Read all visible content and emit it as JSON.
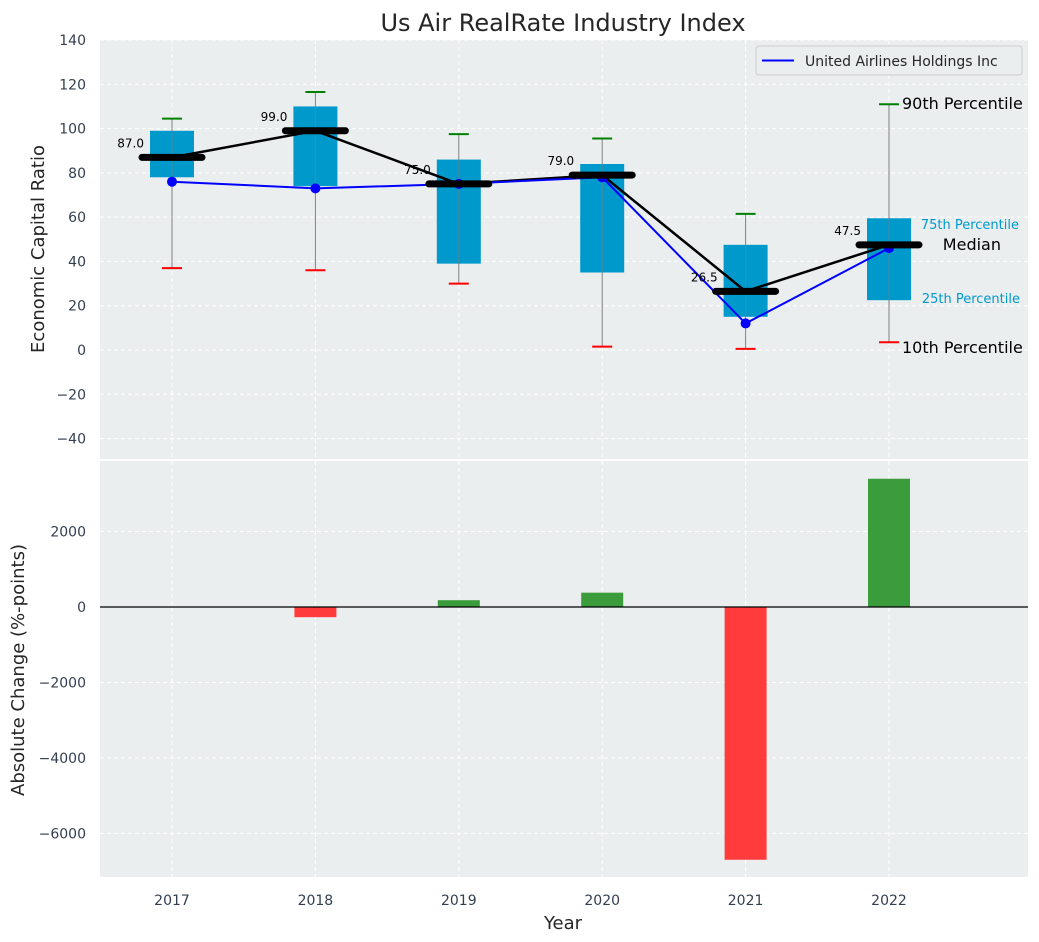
{
  "chart_data": [
    {
      "type": "box",
      "title": "Us Air RealRate Industry Index",
      "xlabel": "",
      "ylabel": "Economic Capital Ratio",
      "ylim": [
        -50,
        140
      ],
      "yticks": [
        140,
        120,
        100,
        80,
        60,
        40,
        20,
        0,
        -20,
        -40
      ],
      "ytick_labels": [
        "140",
        "120",
        "100",
        "80",
        "60",
        "40",
        "20",
        "0",
        "−20",
        "−40"
      ],
      "grid": true,
      "legend": {
        "position": "top-right",
        "entries": [
          "United Airlines Holdings Inc"
        ]
      },
      "categories": [
        "2017",
        "2018",
        "2019",
        "2020",
        "2021",
        "2022"
      ],
      "boxes": [
        {
          "year": "2017",
          "p10": 37,
          "p25": 78,
          "median": 87,
          "p75": 99,
          "p90": 104.5,
          "median_label": "87.0"
        },
        {
          "year": "2018",
          "p10": 36,
          "p25": 74,
          "median": 99,
          "p75": 110,
          "p90": 116.5,
          "median_label": "99.0"
        },
        {
          "year": "2019",
          "p10": 30,
          "p25": 39,
          "median": 75,
          "p75": 86,
          "p90": 97.5,
          "median_label": "75.0"
        },
        {
          "year": "2020",
          "p10": 1.5,
          "p25": 35,
          "median": 79,
          "p75": 84,
          "p90": 95.5,
          "median_label": "79.0"
        },
        {
          "year": "2021",
          "p10": 0.5,
          "p25": 15,
          "median": 26.5,
          "p75": 47.5,
          "p90": 61.5,
          "median_label": "26.5"
        },
        {
          "year": "2022",
          "p10": 3.5,
          "p25": 22.5,
          "median": 47.5,
          "p75": 59.5,
          "p90": 111,
          "median_label": "47.5"
        }
      ],
      "company_series": {
        "name": "United Airlines Holdings Inc",
        "values": [
          76,
          73,
          75,
          78,
          12,
          46
        ],
        "color": "#0000ff"
      },
      "annotations": {
        "p90": "90th Percentile",
        "p75": "75th Percentile",
        "median": "Median",
        "p25": "25th Percentile",
        "p10": "10th Percentile"
      },
      "colors": {
        "box": "#0099cc",
        "median_line": "#000000",
        "p90_cap": "#008000",
        "p10_cap": "#ff0000",
        "whisker": "#808080",
        "background": "#eaeeef"
      }
    },
    {
      "type": "bar",
      "xlabel": "Year",
      "ylabel": "Absolute Change (%-points)",
      "ylim": [
        -7200,
        4000
      ],
      "yticks": [
        2000,
        0,
        -2000,
        -4000,
        -6000
      ],
      "ytick_labels": [
        "2000",
        "0",
        "−2000",
        "−4000",
        "−6000"
      ],
      "grid": true,
      "categories": [
        "2017",
        "2018",
        "2019",
        "2020",
        "2021",
        "2022"
      ],
      "values": [
        0,
        -270,
        180,
        380,
        -6700,
        3400
      ],
      "colors": {
        "positive": "#3a9c3a",
        "negative": "#ff3b3b",
        "zero_line": "#000000",
        "background": "#eaeeef"
      }
    }
  ]
}
